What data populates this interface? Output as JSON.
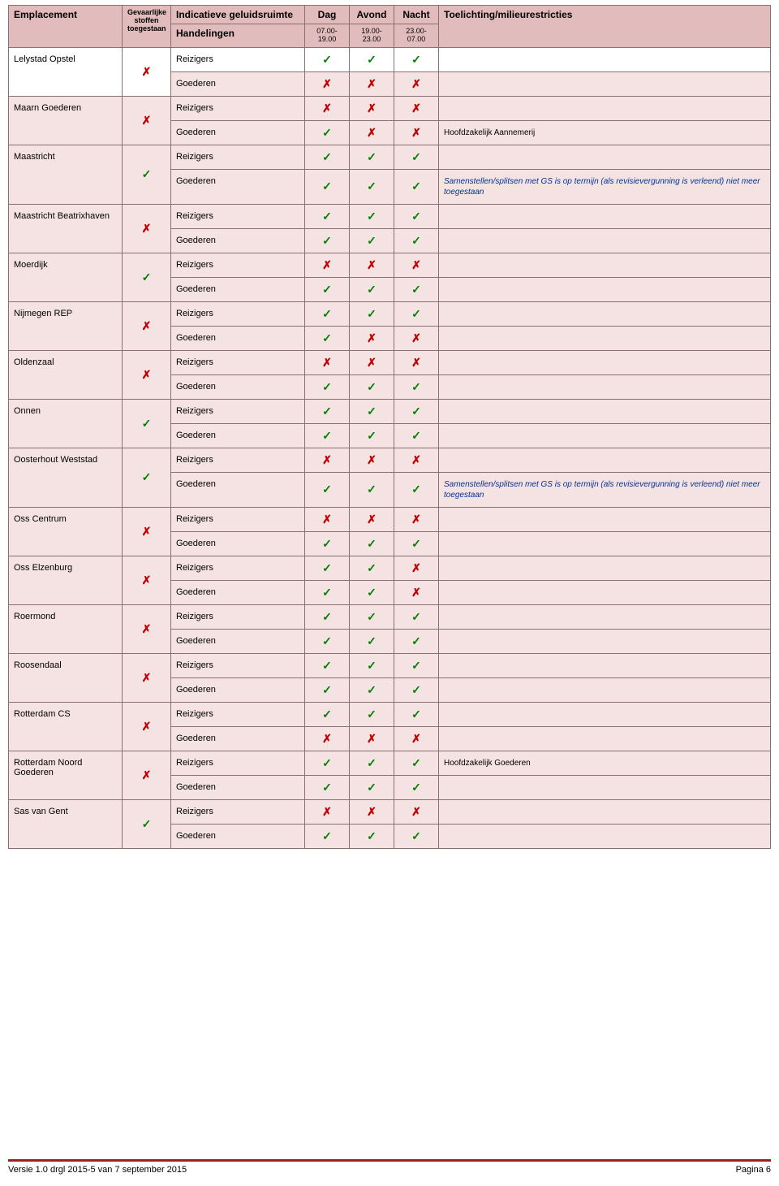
{
  "header": {
    "emplacement": "Emplacement",
    "gevaarlijke": "Gevaarlijke stoffen toegestaan",
    "indicatieve": "Indicatieve geluidsruimte",
    "handelingen": "Handelingen",
    "dag": "Dag",
    "avond": "Avond",
    "nacht": "Nacht",
    "toelichting": "Toelichting/milieurestricties",
    "t1": "07.00-19.00",
    "t2": "19.00-23.00",
    "t3": "23.00-07.00"
  },
  "reizigers": "Reizigers",
  "goederen": "Goederen",
  "notes": {
    "aannemerij": "Hoofdzakelijk Aannemerij",
    "samenstellen": "Samenstellen/splitsen met GS is op termijn (als revisievergunning is verleend) niet meer toegestaan",
    "hoofdgoederen": "Hoofdzakelijk Goederen"
  },
  "rows": [
    {
      "name": "Lelystad Opstel",
      "gs": "x",
      "r": [
        "c",
        "c",
        "c"
      ],
      "g": [
        "x",
        "x",
        "x"
      ],
      "rWhite": true
    },
    {
      "name": "Maarn Goederen",
      "gs": "x",
      "r": [
        "x",
        "x",
        "x"
      ],
      "g": [
        "c",
        "x",
        "x"
      ],
      "gNote": "aannemerij"
    },
    {
      "name": "Maastricht",
      "gs": "c",
      "r": [
        "c",
        "c",
        "c"
      ],
      "g": [
        "c",
        "c",
        "c"
      ],
      "gNote": "samenstellen",
      "gNoteBlue": true
    },
    {
      "name": "Maastricht Beatrixhaven",
      "gs": "x",
      "r": [
        "c",
        "c",
        "c"
      ],
      "g": [
        "c",
        "c",
        "c"
      ]
    },
    {
      "name": "Moerdijk",
      "gs": "c",
      "r": [
        "x",
        "x",
        "x"
      ],
      "g": [
        "c",
        "c",
        "c"
      ]
    },
    {
      "name": "Nijmegen REP",
      "gs": "x",
      "r": [
        "c",
        "c",
        "c"
      ],
      "g": [
        "c",
        "x",
        "x"
      ]
    },
    {
      "name": "Oldenzaal",
      "gs": "x",
      "r": [
        "x",
        "x",
        "x"
      ],
      "g": [
        "c",
        "c",
        "c"
      ]
    },
    {
      "name": "Onnen",
      "gs": "c",
      "r": [
        "c",
        "c",
        "c"
      ],
      "g": [
        "c",
        "c",
        "c"
      ]
    },
    {
      "name": "Oosterhout Weststad",
      "gs": "c",
      "r": [
        "x",
        "x",
        "x"
      ],
      "g": [
        "c",
        "c",
        "c"
      ],
      "gNote": "samenstellen",
      "gNoteBlue": true
    },
    {
      "name": "Oss Centrum",
      "gs": "x",
      "r": [
        "x",
        "x",
        "x"
      ],
      "g": [
        "c",
        "c",
        "c"
      ]
    },
    {
      "name": "Oss Elzenburg",
      "gs": "x",
      "r": [
        "c",
        "c",
        "x"
      ],
      "g": [
        "c",
        "c",
        "x"
      ]
    },
    {
      "name": "Roermond",
      "gs": "x",
      "r": [
        "c",
        "c",
        "c"
      ],
      "g": [
        "c",
        "c",
        "c"
      ]
    },
    {
      "name": "Roosendaal",
      "gs": "x",
      "r": [
        "c",
        "c",
        "c"
      ],
      "g": [
        "c",
        "c",
        "c"
      ]
    },
    {
      "name": "Rotterdam CS",
      "gs": "x",
      "r": [
        "c",
        "c",
        "c"
      ],
      "g": [
        "x",
        "x",
        "x"
      ]
    },
    {
      "name": "Rotterdam Noord Goederen",
      "gs": "x",
      "r": [
        "c",
        "c",
        "c"
      ],
      "g": [
        "c",
        "c",
        "c"
      ],
      "rNote": "hoofdgoederen"
    },
    {
      "name": "Sas van Gent",
      "gs": "c",
      "r": [
        "x",
        "x",
        "x"
      ],
      "g": [
        "c",
        "c",
        "c"
      ]
    }
  ],
  "footer": {
    "left": "Versie 1.0 drgl 2015-5 van 7 september 2015",
    "right": "Pagina 6"
  },
  "colors": {
    "headerBg": "#e2bcbc",
    "pinkBg": "#f5e2e2",
    "border": "#8a6f6f",
    "check": "#008000",
    "cross": "#c00000",
    "noteBlue": "#003399",
    "footerRule": "#a02020"
  },
  "colWidths": {
    "emplacement": 140,
    "gs": 60,
    "handel": 165,
    "time": 55,
    "toelichting": 290
  }
}
